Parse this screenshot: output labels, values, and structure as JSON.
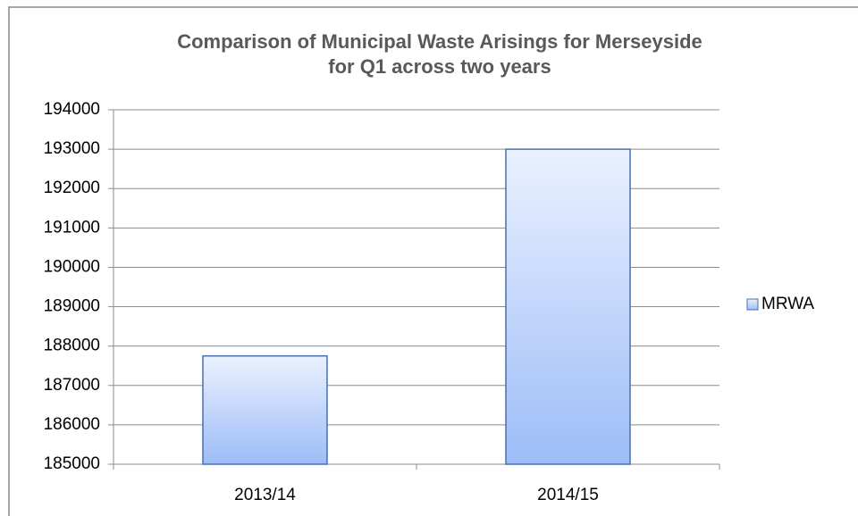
{
  "chart_data": {
    "type": "bar",
    "title": [
      "Comparison of Municipal Waste Arisings for Merseyside",
      "for Q1 across two years"
    ],
    "categories": [
      "2013/14",
      "2014/15"
    ],
    "series": [
      {
        "name": "MRWA",
        "color": "#9dbcf7",
        "values": [
          187750,
          193000
        ]
      }
    ],
    "ylim": [
      185000,
      194000
    ],
    "yticks": [
      185000,
      186000,
      187000,
      188000,
      189000,
      190000,
      191000,
      192000,
      193000,
      194000
    ],
    "grid": true,
    "legend": "right"
  }
}
